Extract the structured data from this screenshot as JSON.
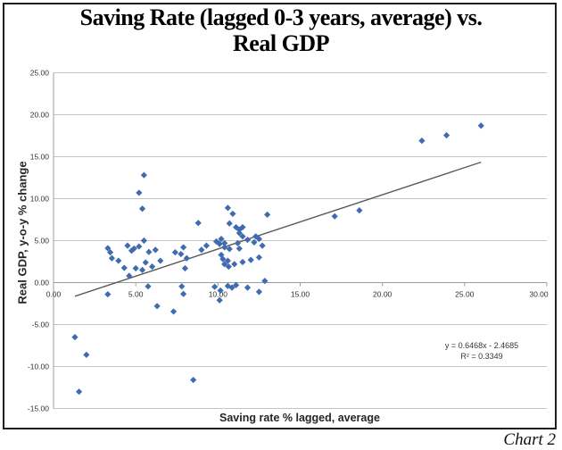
{
  "title": "Saving Rate (lagged 0-3 years, average) vs.\nReal GDP",
  "caption": "Chart 2",
  "annotation": {
    "equation": "y = 0.6468x - 2.4685",
    "r_squared": "R² = 0.3349"
  },
  "colors": {
    "point": "#3f6cb0",
    "trend": "#5a5a5a",
    "grid": "#c4c4c4",
    "axis": "#9d9d9d",
    "tick_text": "#303030"
  },
  "chart_data": {
    "type": "scatter",
    "title": "Saving Rate (lagged 0-3 years, average) vs. Real GDP",
    "xlabel": "Saving rate % lagged, average",
    "ylabel": "Real GDP, y-o-y % change",
    "xlim": [
      0,
      30
    ],
    "ylim": [
      -15,
      25
    ],
    "x_ticks": [
      0,
      5,
      10,
      15,
      20,
      25,
      30
    ],
    "x_tick_labels": [
      "0.00",
      "5.00",
      "10.00",
      "15.00",
      "20.00",
      "25.00",
      "30.00"
    ],
    "y_ticks": [
      -15,
      -10,
      -5,
      0,
      5,
      10,
      15,
      20,
      25
    ],
    "y_tick_labels": [
      "-15.00",
      "-10.00",
      "-5.00",
      "0.00",
      "5.00",
      "10.00",
      "15.00",
      "20.00",
      "25.00"
    ],
    "grid": true,
    "legend": false,
    "marker": "diamond",
    "points": [
      [
        1.3,
        -6.5
      ],
      [
        2.0,
        -8.6
      ],
      [
        1.55,
        -13.0
      ],
      [
        3.3,
        4.1
      ],
      [
        3.45,
        3.6
      ],
      [
        3.55,
        2.9
      ],
      [
        3.95,
        2.6
      ],
      [
        4.3,
        1.75
      ],
      [
        3.3,
        -1.4
      ],
      [
        4.5,
        4.4
      ],
      [
        4.75,
        3.8
      ],
      [
        4.9,
        4.05
      ],
      [
        5.2,
        4.3
      ],
      [
        5.5,
        5.0
      ],
      [
        5.8,
        3.65
      ],
      [
        6.2,
        3.9
      ],
      [
        5.6,
        2.4
      ],
      [
        6.0,
        1.9
      ],
      [
        6.5,
        2.6
      ],
      [
        5.0,
        1.7
      ],
      [
        5.4,
        1.5
      ],
      [
        4.6,
        0.8
      ],
      [
        5.75,
        -0.45
      ],
      [
        5.5,
        12.8
      ],
      [
        5.2,
        10.7
      ],
      [
        5.4,
        8.8
      ],
      [
        6.3,
        -2.8
      ],
      [
        7.3,
        -3.45
      ],
      [
        7.4,
        3.6
      ],
      [
        7.75,
        3.4
      ],
      [
        7.9,
        4.2
      ],
      [
        8.1,
        2.9
      ],
      [
        8.0,
        1.7
      ],
      [
        7.8,
        -0.45
      ],
      [
        7.9,
        -1.35
      ],
      [
        8.8,
        7.1
      ],
      [
        9.0,
        3.9
      ],
      [
        9.3,
        4.4
      ],
      [
        8.5,
        -11.6
      ],
      [
        9.9,
        4.9
      ],
      [
        10.2,
        5.2
      ],
      [
        10.1,
        4.6
      ],
      [
        10.4,
        4.7
      ],
      [
        10.4,
        4.2
      ],
      [
        10.7,
        4.0
      ],
      [
        11.2,
        4.7
      ],
      [
        11.3,
        4.05
      ],
      [
        11.8,
        5.1
      ],
      [
        12.3,
        5.5
      ],
      [
        12.5,
        5.2
      ],
      [
        12.2,
        4.8
      ],
      [
        12.7,
        4.4
      ],
      [
        10.6,
        8.9
      ],
      [
        10.9,
        8.2
      ],
      [
        13.0,
        8.1
      ],
      [
        10.7,
        7.05
      ],
      [
        11.1,
        6.6
      ],
      [
        11.5,
        6.6
      ],
      [
        11.3,
        6.3
      ],
      [
        11.3,
        5.9
      ],
      [
        11.5,
        5.5
      ],
      [
        10.2,
        3.3
      ],
      [
        10.3,
        2.8
      ],
      [
        10.6,
        2.6
      ],
      [
        10.4,
        2.2
      ],
      [
        10.65,
        1.9
      ],
      [
        11.0,
        2.2
      ],
      [
        11.5,
        2.45
      ],
      [
        12.0,
        2.7
      ],
      [
        12.5,
        3.0
      ],
      [
        12.85,
        0.2
      ],
      [
        9.8,
        -0.5
      ],
      [
        10.15,
        -0.95
      ],
      [
        10.1,
        -2.1
      ],
      [
        10.6,
        -0.4
      ],
      [
        10.85,
        -0.6
      ],
      [
        11.1,
        -0.3
      ],
      [
        11.8,
        -0.6
      ],
      [
        12.5,
        -1.1
      ],
      [
        17.1,
        7.9
      ],
      [
        18.6,
        8.6
      ],
      [
        22.4,
        16.9
      ],
      [
        23.9,
        17.55
      ],
      [
        26.0,
        18.7
      ]
    ],
    "trendline": {
      "slope": 0.6468,
      "intercept": -2.4685,
      "x_start": 1.3,
      "x_end": 26.0
    }
  }
}
